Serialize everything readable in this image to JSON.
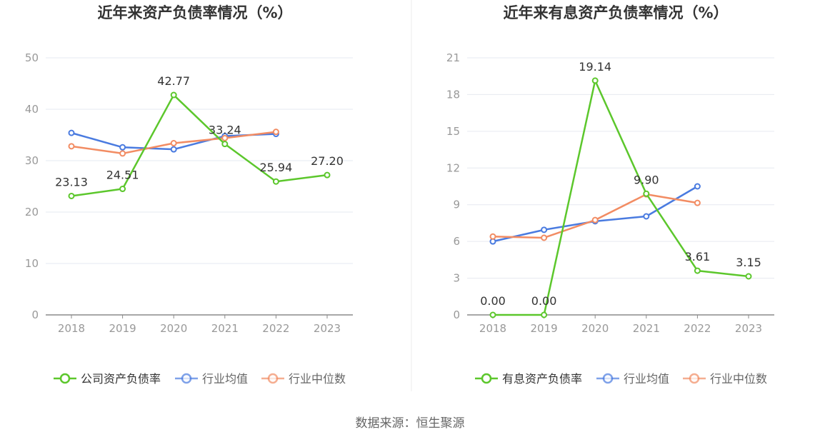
{
  "source_label": "数据来源：恒生聚源",
  "colors": {
    "company": "#5cc72c",
    "industry_avg": "#4a7be0",
    "industry_median": "#f28c63",
    "grid": "#e6e9f0",
    "axis": "#8a8a8a",
    "title": "#333333",
    "tick": "#999999",
    "label": "#333333"
  },
  "chart_data": [
    {
      "type": "line",
      "title": "近年来资产负债率情况（%）",
      "categories": [
        "2018",
        "2019",
        "2020",
        "2021",
        "2022",
        "2023"
      ],
      "ylim": [
        0,
        50
      ],
      "yticks": [
        0,
        10,
        20,
        30,
        40,
        50
      ],
      "grid": true,
      "legend_position": "bottom",
      "series": [
        {
          "name": "公司资产负债率",
          "key": "company",
          "values": [
            23.13,
            24.51,
            42.77,
            33.24,
            25.94,
            27.2
          ],
          "labels": [
            "23.13",
            "24.51",
            "42.77",
            "33.24",
            "25.94",
            "27.20"
          ]
        },
        {
          "name": "行业均值",
          "key": "industry_avg",
          "values": [
            35.4,
            32.6,
            32.2,
            34.8,
            35.2,
            null
          ]
        },
        {
          "name": "行业中位数",
          "key": "industry_median",
          "values": [
            32.8,
            31.4,
            33.4,
            34.4,
            35.6,
            null
          ]
        }
      ]
    },
    {
      "type": "line",
      "title": "近年来有息资产负债率情况（%）",
      "categories": [
        "2018",
        "2019",
        "2020",
        "2021",
        "2022",
        "2023"
      ],
      "ylim": [
        0,
        21
      ],
      "yticks": [
        0,
        3,
        6,
        9,
        12,
        15,
        18,
        21
      ],
      "grid": true,
      "legend_position": "bottom",
      "series": [
        {
          "name": "有息资产负债率",
          "key": "company",
          "values": [
            0.0,
            0.0,
            19.14,
            9.9,
            3.61,
            3.15
          ],
          "labels": [
            "0.00",
            "0.00",
            "19.14",
            "9.90",
            "3.61",
            "3.15"
          ]
        },
        {
          "name": "行业均值",
          "key": "industry_avg",
          "values": [
            6.0,
            6.95,
            7.65,
            8.05,
            10.5,
            null
          ]
        },
        {
          "name": "行业中位数",
          "key": "industry_median",
          "values": [
            6.4,
            6.3,
            7.75,
            9.85,
            9.15,
            null
          ]
        }
      ]
    }
  ]
}
